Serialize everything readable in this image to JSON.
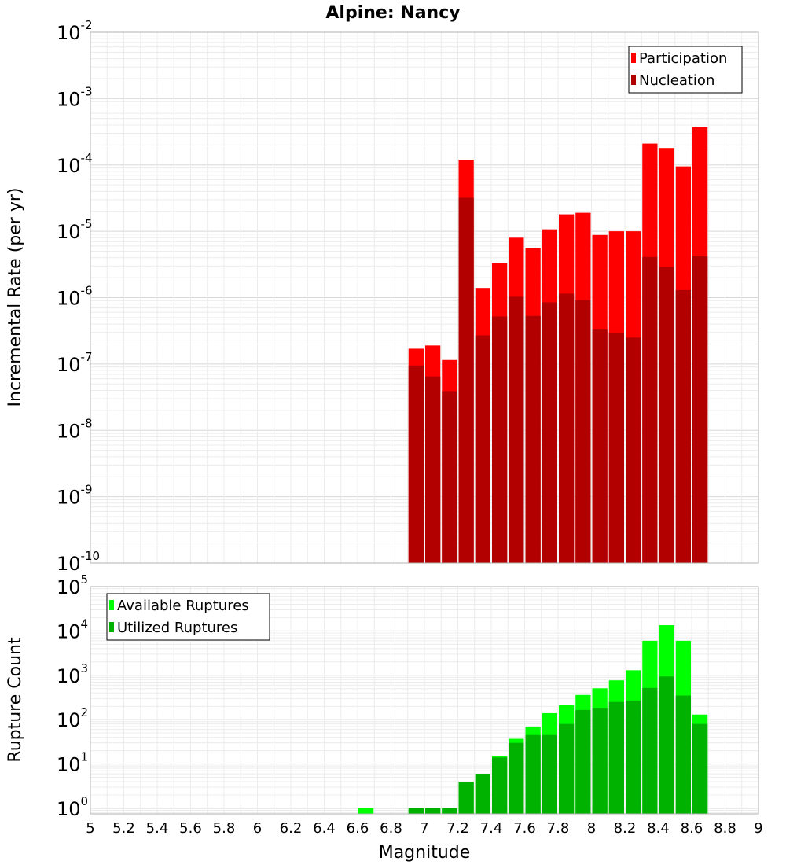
{
  "title": "Alpine: Nancy",
  "xlabel": "Magnitude",
  "chart_data": [
    {
      "type": "bar",
      "ylabel": "Incremental Rate (per yr)",
      "yscale": "log",
      "ylim": [
        1e-10,
        0.01
      ],
      "xlim": [
        5,
        9
      ],
      "x": [
        6.95,
        7.05,
        7.15,
        7.25,
        7.35,
        7.45,
        7.55,
        7.65,
        7.75,
        7.85,
        7.95,
        8.05,
        8.15,
        8.25,
        8.35,
        8.45,
        8.55,
        8.65
      ],
      "series": [
        {
          "name": "Participation",
          "color": "#ff0000",
          "values": [
            1.7e-07,
            1.9e-07,
            1.15e-07,
            0.00012,
            1.4e-06,
            3.3e-06,
            8e-06,
            5.6e-06,
            1.07e-05,
            1.8e-05,
            1.9e-05,
            8.8e-06,
            1e-05,
            1e-05,
            0.00021,
            0.00018,
            9.5e-05,
            0.00037
          ]
        },
        {
          "name": "Nucleation",
          "color": "#b20000",
          "values": [
            9.5e-08,
            6.5e-08,
            3.9e-08,
            3.2e-05,
            2.7e-07,
            5.2e-07,
            1.03e-06,
            5.3e-07,
            8.5e-07,
            1.15e-06,
            9.2e-07,
            3.3e-07,
            2.9e-07,
            2.5e-07,
            4.1e-06,
            2.9e-06,
            1.3e-06,
            4.2e-06
          ]
        }
      ],
      "legend": "top-right",
      "grid": true,
      "yticks_exp": [
        -2,
        -3,
        -4,
        -5,
        -6,
        -7,
        -8,
        -9,
        -10
      ]
    },
    {
      "type": "bar",
      "ylabel": "Rupture Count",
      "yscale": "log",
      "ylim": [
        0.75,
        100000.0
      ],
      "xlim": [
        5,
        9
      ],
      "x": [
        6.65,
        6.95,
        7.05,
        7.15,
        7.25,
        7.35,
        7.45,
        7.55,
        7.65,
        7.75,
        7.85,
        7.95,
        8.05,
        8.15,
        8.25,
        8.35,
        8.45,
        8.55,
        8.65
      ],
      "series": [
        {
          "name": "Available Ruptures",
          "color": "#00ff00",
          "values": [
            1,
            1,
            1,
            1,
            4,
            6,
            15,
            37,
            70,
            140,
            210,
            360,
            510,
            770,
            1300,
            6000,
            13500,
            6000,
            130
          ]
        },
        {
          "name": "Utilized Ruptures",
          "color": "#00b200",
          "values": [
            0,
            1,
            1,
            1,
            4,
            6,
            14,
            30,
            45,
            45,
            80,
            165,
            185,
            250,
            270,
            520,
            940,
            350,
            80
          ]
        }
      ],
      "legend": "top-left",
      "grid": true,
      "yticks_exp": [
        5,
        4,
        3,
        2,
        1,
        0
      ]
    }
  ],
  "xticks": [
    "5",
    "5.2",
    "5.4",
    "5.6",
    "5.8",
    "6",
    "6.2",
    "6.4",
    "6.6",
    "6.8",
    "7",
    "7.2",
    "7.4",
    "7.6",
    "7.8",
    "8",
    "8.2",
    "8.4",
    "8.6",
    "8.8",
    "9"
  ],
  "tick_base": "10"
}
